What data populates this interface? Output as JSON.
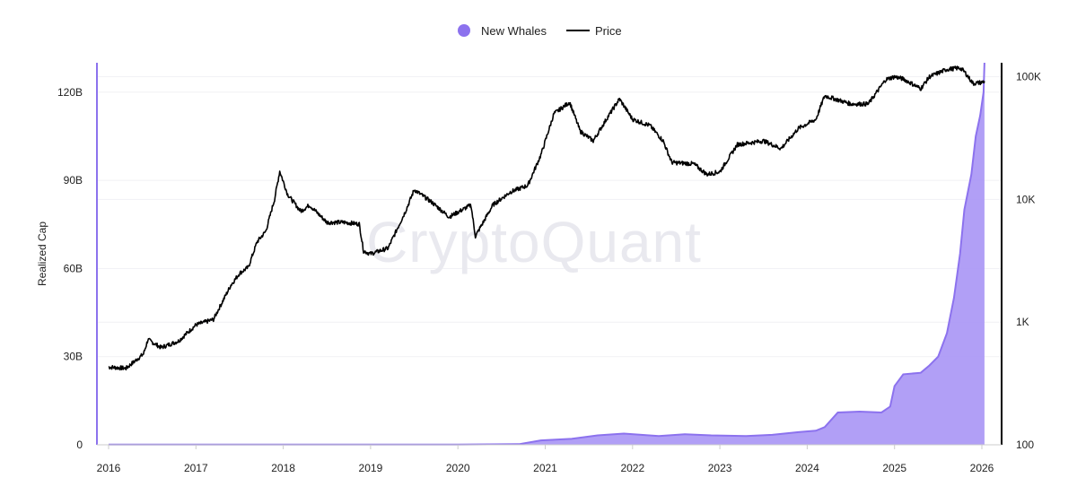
{
  "watermark": "CryptoQuant",
  "legend": [
    {
      "label": "New Whales",
      "color": "#8c72ee"
    },
    {
      "label": "Price",
      "color": "#000000"
    }
  ],
  "chart_data": {
    "type": "area",
    "ylabel_left": "Realized Cap",
    "x_ticks": [
      "2016",
      "2017",
      "2018",
      "2019",
      "2020",
      "2021",
      "2022",
      "2023",
      "2024",
      "2025",
      "2026"
    ],
    "y_left_ticks": [
      "0",
      "30B",
      "60B",
      "90B",
      "120B"
    ],
    "y_left_range": [
      0,
      130
    ],
    "y_right_ticks": [
      "100",
      "1K",
      "10K",
      "100K"
    ],
    "y_right_scale": "log",
    "y_right_range": [
      100,
      130000
    ],
    "legend_position": "top-center",
    "series": [
      {
        "name": "New Whales",
        "kind": "area",
        "axis": "left",
        "color": "#8c72ee",
        "unit": "billions",
        "points": [
          [
            2016.0,
            0.1
          ],
          [
            2017.0,
            0.1
          ],
          [
            2018.0,
            0.1
          ],
          [
            2019.0,
            0.1
          ],
          [
            2020.0,
            0.1
          ],
          [
            2020.7,
            0.2
          ],
          [
            2020.95,
            1.5
          ],
          [
            2021.3,
            2.0
          ],
          [
            2021.6,
            3.2
          ],
          [
            2021.9,
            3.8
          ],
          [
            2022.3,
            3.0
          ],
          [
            2022.6,
            3.6
          ],
          [
            2022.9,
            3.2
          ],
          [
            2023.3,
            3.0
          ],
          [
            2023.6,
            3.4
          ],
          [
            2023.9,
            4.3
          ],
          [
            2024.1,
            4.8
          ],
          [
            2024.2,
            6.0
          ],
          [
            2024.35,
            11.0
          ],
          [
            2024.6,
            11.3
          ],
          [
            2024.85,
            11.0
          ],
          [
            2024.95,
            13.0
          ],
          [
            2025.0,
            20.0
          ],
          [
            2025.1,
            24.0
          ],
          [
            2025.3,
            24.5
          ],
          [
            2025.4,
            27.0
          ],
          [
            2025.5,
            30.0
          ],
          [
            2025.6,
            38.0
          ],
          [
            2025.68,
            50.0
          ],
          [
            2025.75,
            65.0
          ],
          [
            2025.8,
            80.0
          ],
          [
            2025.88,
            92.0
          ],
          [
            2025.93,
            105.0
          ],
          [
            2025.98,
            112.0
          ],
          [
            2026.02,
            120.0
          ],
          [
            2026.03,
            130.0
          ]
        ]
      },
      {
        "name": "Price",
        "kind": "line",
        "axis": "right",
        "color": "#000000",
        "unit": "USD",
        "points": [
          [
            2016.0,
            430
          ],
          [
            2016.2,
            420
          ],
          [
            2016.4,
            550
          ],
          [
            2016.45,
            720
          ],
          [
            2016.6,
            620
          ],
          [
            2016.8,
            700
          ],
          [
            2017.0,
            950
          ],
          [
            2017.2,
            1050
          ],
          [
            2017.4,
            2000
          ],
          [
            2017.5,
            2500
          ],
          [
            2017.6,
            2800
          ],
          [
            2017.7,
            4500
          ],
          [
            2017.8,
            5500
          ],
          [
            2017.9,
            10000
          ],
          [
            2017.96,
            17000
          ],
          [
            2018.05,
            11000
          ],
          [
            2018.2,
            8000
          ],
          [
            2018.3,
            9000
          ],
          [
            2018.5,
            6500
          ],
          [
            2018.7,
            6500
          ],
          [
            2018.87,
            6300
          ],
          [
            2018.92,
            3800
          ],
          [
            2019.0,
            3600
          ],
          [
            2019.2,
            4000
          ],
          [
            2019.4,
            8000
          ],
          [
            2019.5,
            12000
          ],
          [
            2019.7,
            9500
          ],
          [
            2019.9,
            7200
          ],
          [
            2020.15,
            9000
          ],
          [
            2020.2,
            5000
          ],
          [
            2020.4,
            9000
          ],
          [
            2020.6,
            11500
          ],
          [
            2020.8,
            13000
          ],
          [
            2020.95,
            23000
          ],
          [
            2021.1,
            50000
          ],
          [
            2021.28,
            62000
          ],
          [
            2021.4,
            36000
          ],
          [
            2021.55,
            30000
          ],
          [
            2021.7,
            45000
          ],
          [
            2021.85,
            66000
          ],
          [
            2022.0,
            45000
          ],
          [
            2022.2,
            40000
          ],
          [
            2022.35,
            30000
          ],
          [
            2022.45,
            20000
          ],
          [
            2022.7,
            19500
          ],
          [
            2022.85,
            16000
          ],
          [
            2023.0,
            16800
          ],
          [
            2023.2,
            28000
          ],
          [
            2023.5,
            30000
          ],
          [
            2023.7,
            26000
          ],
          [
            2023.9,
            38000
          ],
          [
            2024.1,
            45000
          ],
          [
            2024.2,
            70000
          ],
          [
            2024.5,
            60000
          ],
          [
            2024.7,
            60000
          ],
          [
            2024.9,
            95000
          ],
          [
            2025.0,
            100000
          ],
          [
            2025.1,
            96000
          ],
          [
            2025.3,
            80000
          ],
          [
            2025.4,
            100000
          ],
          [
            2025.6,
            115000
          ],
          [
            2025.75,
            118000
          ],
          [
            2025.8,
            110000
          ],
          [
            2025.9,
            88000
          ],
          [
            2026.0,
            90000
          ],
          [
            2026.03,
            92000
          ]
        ]
      }
    ]
  }
}
